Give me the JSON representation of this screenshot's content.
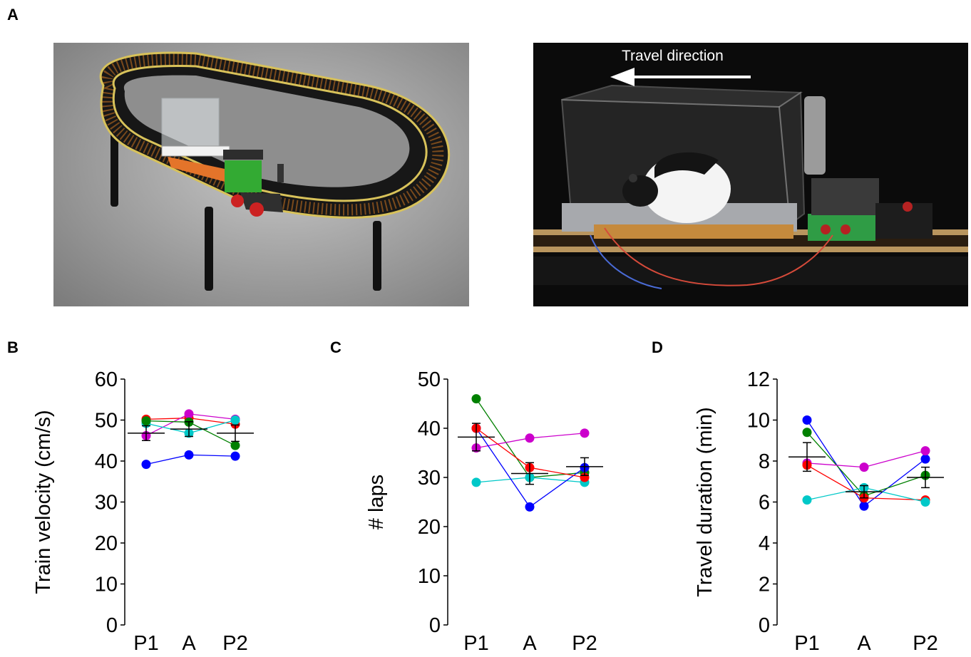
{
  "panel_labels": {
    "a": "A",
    "b": "B",
    "c": "C",
    "d": "D"
  },
  "photo_right": {
    "overlay_text": "Travel direction"
  },
  "colors": {
    "red": "#ff0000",
    "magenta": "#cc00cc",
    "cyan": "#00c8c8",
    "green": "#008000",
    "blue": "#0000ff",
    "mean": "#000000"
  },
  "chart_data": [
    {
      "type": "scatter",
      "categories": [
        "P1",
        "A",
        "P2"
      ],
      "ylabel": "Train velocity (cm/s)",
      "ylim": [
        0,
        60
      ],
      "yticks": [
        0,
        10,
        20,
        30,
        40,
        50,
        60
      ],
      "series": [
        {
          "color": "#ff0000",
          "values": [
            50.2,
            50.5,
            49.0
          ]
        },
        {
          "color": "#cc00cc",
          "values": [
            46.2,
            51.5,
            50.2
          ]
        },
        {
          "color": "#00c8c8",
          "values": [
            49.2,
            46.8,
            50.0
          ]
        },
        {
          "color": "#008000",
          "values": [
            49.8,
            49.5,
            43.8
          ]
        },
        {
          "color": "#0000ff",
          "values": [
            39.2,
            41.5,
            41.2
          ]
        }
      ],
      "mean": [
        46.8,
        47.8,
        46.8
      ],
      "sem": [
        1.8,
        1.8,
        2.0
      ]
    },
    {
      "type": "scatter",
      "categories": [
        "P1",
        "A",
        "P2"
      ],
      "ylabel": "# laps",
      "ylim": [
        0,
        50
      ],
      "yticks": [
        0,
        10,
        20,
        30,
        40,
        50
      ],
      "series": [
        {
          "color": "#008000",
          "values": [
            46,
            30,
            31
          ]
        },
        {
          "color": "#cc00cc",
          "values": [
            36,
            38,
            39
          ]
        },
        {
          "color": "#00c8c8",
          "values": [
            29,
            30,
            29
          ]
        },
        {
          "color": "#0000ff",
          "values": [
            40,
            24,
            32
          ]
        },
        {
          "color": "#ff0000",
          "values": [
            40,
            32,
            30
          ]
        }
      ],
      "mean": [
        38.2,
        30.8,
        32.2
      ],
      "sem": [
        2.8,
        2.2,
        1.8
      ]
    },
    {
      "type": "scatter",
      "categories": [
        "P1",
        "A",
        "P2"
      ],
      "ylabel": "Travel duration (min)",
      "ylim": [
        0,
        12
      ],
      "yticks": [
        0,
        2,
        4,
        6,
        8,
        10,
        12
      ],
      "series": [
        {
          "color": "#0000ff",
          "values": [
            10.0,
            5.8,
            8.1
          ]
        },
        {
          "color": "#008000",
          "values": [
            9.4,
            6.3,
            7.3
          ]
        },
        {
          "color": "#cc00cc",
          "values": [
            7.9,
            7.7,
            8.5
          ]
        },
        {
          "color": "#ff0000",
          "values": [
            7.8,
            6.2,
            6.1
          ]
        },
        {
          "color": "#00c8c8",
          "values": [
            6.1,
            6.7,
            6.0
          ]
        }
      ],
      "mean": [
        8.2,
        6.5,
        7.2
      ],
      "sem": [
        0.7,
        0.3,
        0.5
      ]
    }
  ]
}
